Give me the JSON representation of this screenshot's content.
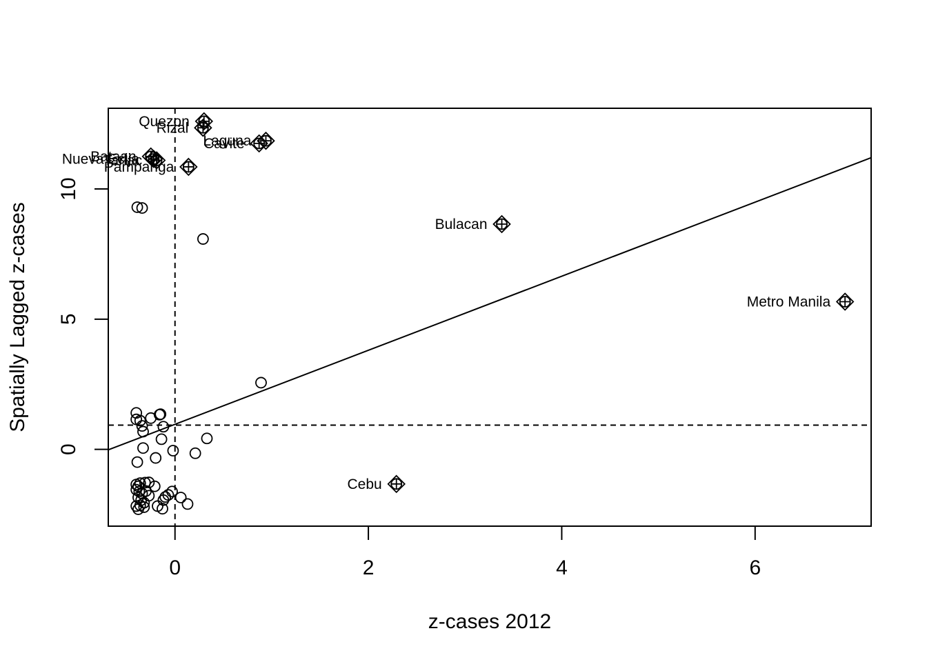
{
  "chart_data": {
    "type": "scatter",
    "title": "",
    "xlabel": "z-cases 2012",
    "ylabel": "Spatially Lagged z-cases",
    "xlim": [
      -0.69,
      7.2
    ],
    "ylim": [
      -2.95,
      13.1
    ],
    "xticks": [
      0,
      2,
      4,
      6
    ],
    "yticks": [
      0,
      5,
      10
    ],
    "grid": false,
    "legend": "none",
    "mean_lines": {
      "x": 0,
      "y": 0.93
    },
    "regression_line": {
      "x1": -0.69,
      "y1": -0.02,
      "x2": 7.2,
      "y2": 11.2
    },
    "points": [
      {
        "x": -0.39,
        "y": 9.3
      },
      {
        "x": -0.34,
        "y": 9.27
      },
      {
        "x": 0.29,
        "y": 8.08
      },
      {
        "x": 0.89,
        "y": 2.56
      },
      {
        "x": -0.4,
        "y": 1.4
      },
      {
        "x": -0.15,
        "y": 1.35
      },
      {
        "x": -0.16,
        "y": 1.33
      },
      {
        "x": -0.4,
        "y": 1.15
      },
      {
        "x": -0.36,
        "y": 1.1
      },
      {
        "x": -0.25,
        "y": 1.2
      },
      {
        "x": -0.34,
        "y": 0.9
      },
      {
        "x": -0.12,
        "y": 0.87
      },
      {
        "x": -0.33,
        "y": 0.68
      },
      {
        "x": -0.14,
        "y": 0.39
      },
      {
        "x": 0.33,
        "y": 0.42
      },
      {
        "x": -0.33,
        "y": 0.05
      },
      {
        "x": -0.02,
        "y": -0.05
      },
      {
        "x": 0.21,
        "y": -0.15
      },
      {
        "x": -0.2,
        "y": -0.33
      },
      {
        "x": -0.39,
        "y": -0.49
      },
      {
        "x": -0.4,
        "y": -1.35
      },
      {
        "x": -0.38,
        "y": -1.42
      },
      {
        "x": -0.36,
        "y": -1.3
      },
      {
        "x": -0.31,
        "y": -1.28
      },
      {
        "x": -0.27,
        "y": -1.27
      },
      {
        "x": -0.21,
        "y": -1.42
      },
      {
        "x": -0.4,
        "y": -1.55
      },
      {
        "x": -0.37,
        "y": -1.62
      },
      {
        "x": -0.34,
        "y": -1.7
      },
      {
        "x": -0.3,
        "y": -1.6
      },
      {
        "x": -0.27,
        "y": -1.78
      },
      {
        "x": -0.38,
        "y": -1.85
      },
      {
        "x": -0.35,
        "y": -1.95
      },
      {
        "x": -0.32,
        "y": -2.05
      },
      {
        "x": -0.36,
        "y": -2.15
      },
      {
        "x": -0.32,
        "y": -2.22
      },
      {
        "x": -0.4,
        "y": -2.18
      },
      {
        "x": -0.38,
        "y": -2.3
      },
      {
        "x": -0.18,
        "y": -2.18
      },
      {
        "x": -0.13,
        "y": -2.28
      },
      {
        "x": -0.12,
        "y": -1.95
      },
      {
        "x": -0.07,
        "y": -1.75
      },
      {
        "x": -0.03,
        "y": -1.62
      },
      {
        "x": 0.06,
        "y": -1.85
      },
      {
        "x": 0.13,
        "y": -2.1
      },
      {
        "x": -0.1,
        "y": -1.83
      }
    ],
    "influential": [
      {
        "label": "Quezon",
        "x": 0.3,
        "y": 12.6
      },
      {
        "label": "Rizal",
        "x": 0.29,
        "y": 12.35
      },
      {
        "label": "Laguna",
        "x": 0.94,
        "y": 11.85
      },
      {
        "label": "Cavite",
        "x": 0.87,
        "y": 11.75
      },
      {
        "label": "Bataan",
        "x": -0.25,
        "y": 11.25
      },
      {
        "label": "Nueva Ecija",
        "x": -0.22,
        "y": 11.15
      },
      {
        "label": "Tarlac",
        "x": -0.19,
        "y": 11.1
      },
      {
        "label": "Pampanga",
        "x": 0.14,
        "y": 10.85
      },
      {
        "label": "Bulacan",
        "x": 3.38,
        "y": 8.65
      },
      {
        "label": "Metro Manila",
        "x": 6.93,
        "y": 5.67
      },
      {
        "label": "Cebu",
        "x": 2.29,
        "y": -1.33
      }
    ]
  }
}
